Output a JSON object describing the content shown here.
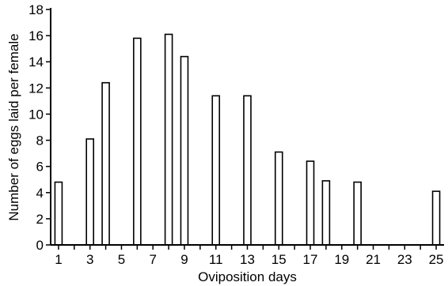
{
  "chart_data": {
    "type": "bar",
    "title": "",
    "xlabel": "Oviposition days",
    "ylabel": "Number of eggs laid per female",
    "x": [
      1,
      3,
      4,
      6,
      8,
      9,
      11,
      13,
      15,
      17,
      18,
      20,
      25
    ],
    "values": [
      4.8,
      8.1,
      12.4,
      15.8,
      16.1,
      14.4,
      11.4,
      11.4,
      7.1,
      6.4,
      4.9,
      4.8,
      4.1
    ],
    "xlim": [
      0.5,
      25.5
    ],
    "ylim": [
      0,
      18
    ],
    "x_ticks": [
      1,
      2,
      3,
      4,
      5,
      6,
      7,
      8,
      9,
      10,
      11,
      12,
      13,
      14,
      15,
      16,
      17,
      18,
      19,
      20,
      21,
      22,
      23,
      24,
      25
    ],
    "x_tick_labels": [
      "1",
      "3",
      "5",
      "7",
      "9",
      "11",
      "13",
      "15",
      "17",
      "19",
      "21",
      "23",
      "25"
    ],
    "y_ticks": [
      "0",
      "2",
      "4",
      "6",
      "8",
      "10",
      "12",
      "14",
      "16",
      "18"
    ],
    "grid": false,
    "legend": "none",
    "bar_fill": "#ffffff",
    "bar_stroke": "#000000"
  }
}
